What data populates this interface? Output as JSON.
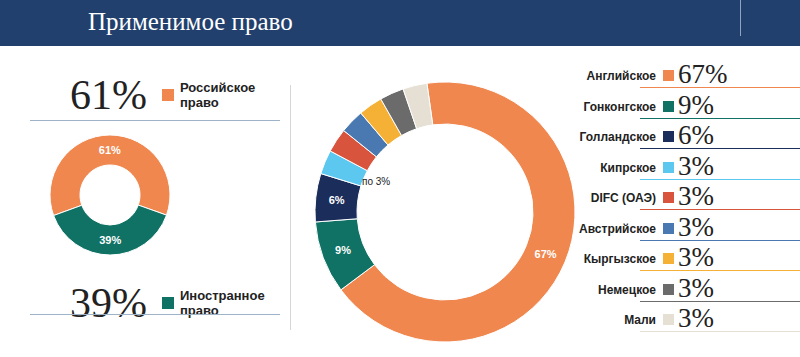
{
  "title": "Применимое право",
  "chart_data": [
    {
      "type": "pie",
      "categories": [
        "Российское право",
        "Иностранное право"
      ],
      "values": [
        61,
        39
      ],
      "value_labels": [
        "61%",
        "39%"
      ],
      "colors": [
        "#f0874f",
        "#0f7265"
      ],
      "data_labels": true
    },
    {
      "type": "pie",
      "categories": [
        "Английское",
        "Гонконгское",
        "Голландское",
        "Кипрское",
        "DIFC (ОАЭ)",
        "Австрийское",
        "Кыргызское",
        "Немецкое",
        "Мали"
      ],
      "values": [
        67,
        9,
        6,
        3,
        3,
        3,
        3,
        3,
        3
      ],
      "value_labels": [
        "67%",
        "9%",
        "6%",
        "3%",
        "3%",
        "3%",
        "3%",
        "3%",
        "3%"
      ],
      "slice_labels": [
        "67%",
        "9%",
        "6%",
        null,
        null,
        null,
        null,
        null,
        null
      ],
      "annotation": "по 3%",
      "colors": [
        "#f0874f",
        "#0f7265",
        "#1b2d5a",
        "#5cc8f0",
        "#d9543c",
        "#4a78b0",
        "#f5b036",
        "#6b6b6b",
        "#e6e0d4"
      ],
      "data_labels": true
    }
  ]
}
